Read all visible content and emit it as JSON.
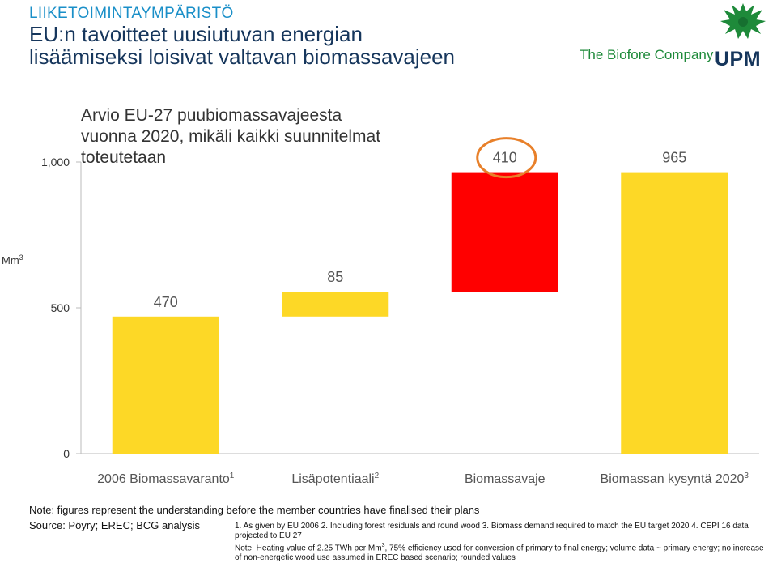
{
  "header": {
    "section_label": "LIIKETOIMINTAYMPÄRISTÖ",
    "title_line1": "EU:n tavoitteet uusiutuvan energian",
    "title_line2": "lisäämiseksi loisivat valtavan biomassavajeen"
  },
  "brand": {
    "tagline": "The Biofore Company",
    "name": "UPM",
    "logo_icon": "griffin-logo-icon",
    "colors": {
      "green": "#1e8a3a",
      "navy": "#16365c"
    }
  },
  "chart_data": {
    "type": "bar",
    "subtype": "waterfall",
    "title_lines": [
      "Arvio EU-27 puubiomassavajeesta",
      "vuonna 2020, mikäli kaikki suunnitelmat",
      "toteutetaan"
    ],
    "ylabel": "Mm",
    "ylabel_sup": "3",
    "ylim": [
      0,
      1000
    ],
    "yticks": [
      {
        "value": 0,
        "label": "0"
      },
      {
        "value": 500,
        "label": "500"
      },
      {
        "value": 1000,
        "label": "1,000"
      }
    ],
    "categories": [
      {
        "label": "2006 Biomassavaranto",
        "sup": "1"
      },
      {
        "label": "Lisäpotentiaali",
        "sup": "2"
      },
      {
        "label": "Biomassavaje",
        "sup": ""
      },
      {
        "label": "Biomassan kysyntä 2020",
        "sup": "3"
      }
    ],
    "bars": [
      {
        "start": 0,
        "end": 470,
        "value_label": "470",
        "color": "#fdd826"
      },
      {
        "start": 470,
        "end": 555,
        "value_label": "85",
        "color": "#fdd826"
      },
      {
        "start": 555,
        "end": 965,
        "value_label": "410",
        "color": "#ff0000",
        "highlight": true
      },
      {
        "start": 0,
        "end": 965,
        "value_label": "965",
        "color": "#fdd826"
      }
    ],
    "highlight_color": "#e8802a"
  },
  "notes": {
    "note": "Note: figures represent the understanding before the member countries have finalised their plans",
    "source": "Source: Pöyry; EREC; BCG analysis",
    "footnote_line1": "1. As given by EU 2006  2. Including forest residuals and round wood  3. Biomass demand required to match the EU target 2020  4. CEPI 16 data projected to EU 27",
    "footnote_line2_pre": "Note: Heating value of 2.25 TWh per Mm",
    "footnote_line2_sup": "3",
    "footnote_line2_post": ", 75% efficiency used for conversion of primary to final energy; volume data ~ primary energy; no increase of non-energetic wood use assumed in EREC based scenario; rounded values"
  }
}
